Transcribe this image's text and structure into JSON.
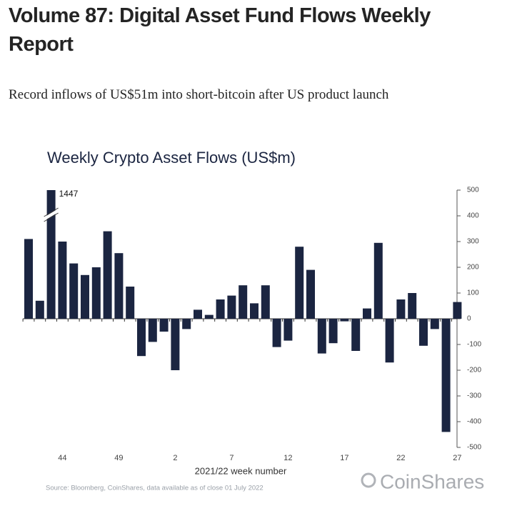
{
  "title": "Volume 87: Digital Asset Fund Flows Weekly Report",
  "subtitle": "Record inflows of US$51m into short-bitcoin after US product launch",
  "chart_data": {
    "type": "bar",
    "title": "Weekly Crypto Asset Flows (US$m)",
    "x_label": "2021/22 week number",
    "source": "Source: Bloomberg, CoinShares, data available as of close 01 July 2022",
    "brand": "CoinShares",
    "categories": [
      null,
      null,
      null,
      "44",
      null,
      null,
      null,
      null,
      "49",
      null,
      null,
      null,
      null,
      "2",
      null,
      null,
      null,
      null,
      "7",
      null,
      null,
      null,
      null,
      "12",
      null,
      null,
      null,
      null,
      "17",
      null,
      null,
      null,
      null,
      "22",
      null,
      null,
      null,
      null,
      "27"
    ],
    "values": [
      310,
      70,
      1447,
      300,
      215,
      170,
      200,
      340,
      255,
      125,
      -145,
      -90,
      -50,
      -200,
      -40,
      35,
      15,
      75,
      90,
      130,
      60,
      130,
      -110,
      -85,
      280,
      190,
      -135,
      -95,
      -10,
      -125,
      40,
      295,
      -170,
      75,
      100,
      -105,
      -40,
      -440,
      65
    ],
    "color": "#1b2541",
    "ylim": [
      -500,
      500
    ],
    "yticks": [
      500,
      400,
      300,
      200,
      100,
      0,
      -100,
      -200,
      -300,
      -400,
      -500
    ],
    "y_axis_side": "right"
  }
}
